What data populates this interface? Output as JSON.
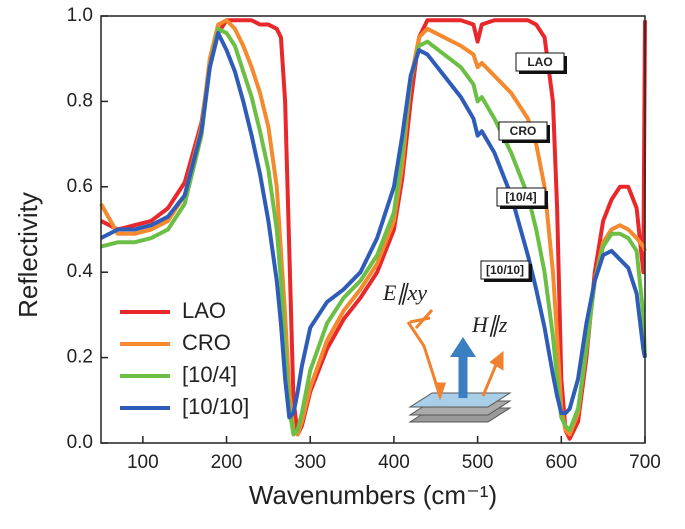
{
  "chart_data": {
    "type": "line",
    "x_label": "Wavenumbers (cm⁻¹)",
    "y_label": "Reflectivity",
    "x": [
      50,
      70,
      90,
      110,
      130,
      150,
      170,
      180,
      190,
      200,
      210,
      220,
      230,
      240,
      250,
      260,
      265,
      270,
      275,
      280,
      285,
      290,
      300,
      320,
      340,
      360,
      380,
      400,
      410,
      420,
      430,
      440,
      460,
      480,
      495,
      500,
      505,
      520,
      540,
      560,
      570,
      580,
      590,
      595,
      600,
      605,
      610,
      620,
      630,
      640,
      650,
      660,
      670,
      680,
      690,
      698,
      700
    ],
    "series": [
      {
        "name": "LAO",
        "color": "#e8282a",
        "values": [
          0.52,
          0.5,
          0.51,
          0.52,
          0.55,
          0.61,
          0.75,
          0.88,
          0.96,
          0.99,
          0.99,
          0.99,
          0.99,
          0.98,
          0.98,
          0.97,
          0.95,
          0.8,
          0.45,
          0.1,
          0.02,
          0.04,
          0.12,
          0.22,
          0.29,
          0.34,
          0.4,
          0.5,
          0.62,
          0.8,
          0.95,
          0.99,
          0.99,
          0.99,
          0.98,
          0.94,
          0.98,
          0.99,
          0.99,
          0.99,
          0.98,
          0.95,
          0.8,
          0.55,
          0.15,
          0.03,
          0.01,
          0.05,
          0.2,
          0.4,
          0.52,
          0.57,
          0.6,
          0.6,
          0.55,
          0.4,
          0.99
        ]
      },
      {
        "name": "CRO",
        "color": "#f5892e",
        "values": [
          0.56,
          0.49,
          0.49,
          0.5,
          0.52,
          0.58,
          0.74,
          0.9,
          0.98,
          0.99,
          0.97,
          0.93,
          0.88,
          0.82,
          0.74,
          0.6,
          0.45,
          0.3,
          0.12,
          0.03,
          0.02,
          0.05,
          0.13,
          0.24,
          0.31,
          0.36,
          0.42,
          0.52,
          0.65,
          0.85,
          0.95,
          0.97,
          0.95,
          0.93,
          0.91,
          0.88,
          0.89,
          0.86,
          0.82,
          0.76,
          0.7,
          0.6,
          0.4,
          0.25,
          0.08,
          0.03,
          0.02,
          0.07,
          0.22,
          0.38,
          0.47,
          0.5,
          0.51,
          0.5,
          0.48,
          0.46,
          0.45
        ]
      },
      {
        "name": "[10/4]",
        "color": "#6cbf45",
        "values": [
          0.46,
          0.47,
          0.47,
          0.48,
          0.5,
          0.56,
          0.72,
          0.88,
          0.97,
          0.96,
          0.93,
          0.87,
          0.81,
          0.73,
          0.64,
          0.5,
          0.38,
          0.22,
          0.08,
          0.02,
          0.03,
          0.07,
          0.17,
          0.28,
          0.34,
          0.38,
          0.44,
          0.54,
          0.68,
          0.85,
          0.93,
          0.94,
          0.91,
          0.88,
          0.84,
          0.8,
          0.81,
          0.76,
          0.68,
          0.58,
          0.5,
          0.4,
          0.25,
          0.15,
          0.06,
          0.04,
          0.03,
          0.08,
          0.22,
          0.38,
          0.46,
          0.49,
          0.49,
          0.48,
          0.45,
          0.3,
          0.2
        ]
      },
      {
        "name": "[10/10]",
        "color": "#2e5cb8",
        "values": [
          0.48,
          0.5,
          0.5,
          0.51,
          0.53,
          0.58,
          0.73,
          0.88,
          0.96,
          0.92,
          0.87,
          0.8,
          0.72,
          0.63,
          0.52,
          0.38,
          0.28,
          0.15,
          0.06,
          0.07,
          0.12,
          0.18,
          0.27,
          0.33,
          0.36,
          0.4,
          0.48,
          0.6,
          0.72,
          0.86,
          0.92,
          0.91,
          0.86,
          0.81,
          0.76,
          0.72,
          0.73,
          0.68,
          0.58,
          0.44,
          0.36,
          0.27,
          0.16,
          0.11,
          0.07,
          0.07,
          0.08,
          0.15,
          0.28,
          0.38,
          0.44,
          0.45,
          0.43,
          0.41,
          0.35,
          0.22,
          0.2
        ]
      }
    ],
    "xlim": [
      50,
      700
    ],
    "xticks": [
      100,
      200,
      300,
      400,
      500,
      600,
      700
    ],
    "ylim": [
      0,
      1
    ],
    "yticks": [
      {
        "value": 0,
        "label": "0.0"
      },
      0.2,
      0.4,
      0.6,
      0.8,
      {
        "value": 1,
        "label": "1.0"
      }
    ],
    "legend": "lower left",
    "annotations": [
      "LAO",
      "CRO",
      "[10/4]",
      "[10/10]",
      "E∥xy",
      "H∥z"
    ]
  }
}
